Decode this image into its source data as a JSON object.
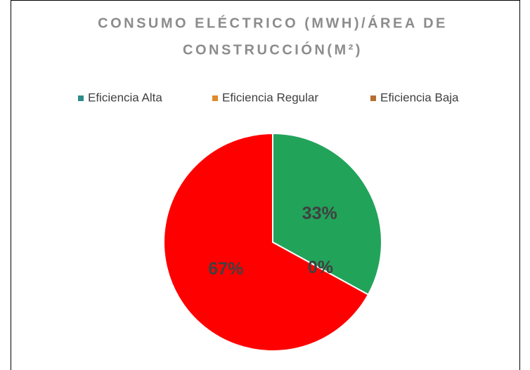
{
  "chart_data": {
    "type": "pie",
    "title": [
      "CONSUMO ELÉCTRICO (MWH)/ÁREA DE",
      "CONSTRUCCIÓN(M²)"
    ],
    "categories": [
      "Eficiencia Alta",
      "Eficiencia Regular",
      "Eficiencia Baja"
    ],
    "values": [
      33,
      0,
      67
    ],
    "value_labels": [
      "33%",
      "0%",
      "67%"
    ],
    "colors": [
      "#22a35a",
      "#f5a623",
      "#ff0000"
    ],
    "legend_colors": [
      "#2e8b8b",
      "#e08a2a",
      "#b5702f"
    ],
    "legend": "top"
  }
}
